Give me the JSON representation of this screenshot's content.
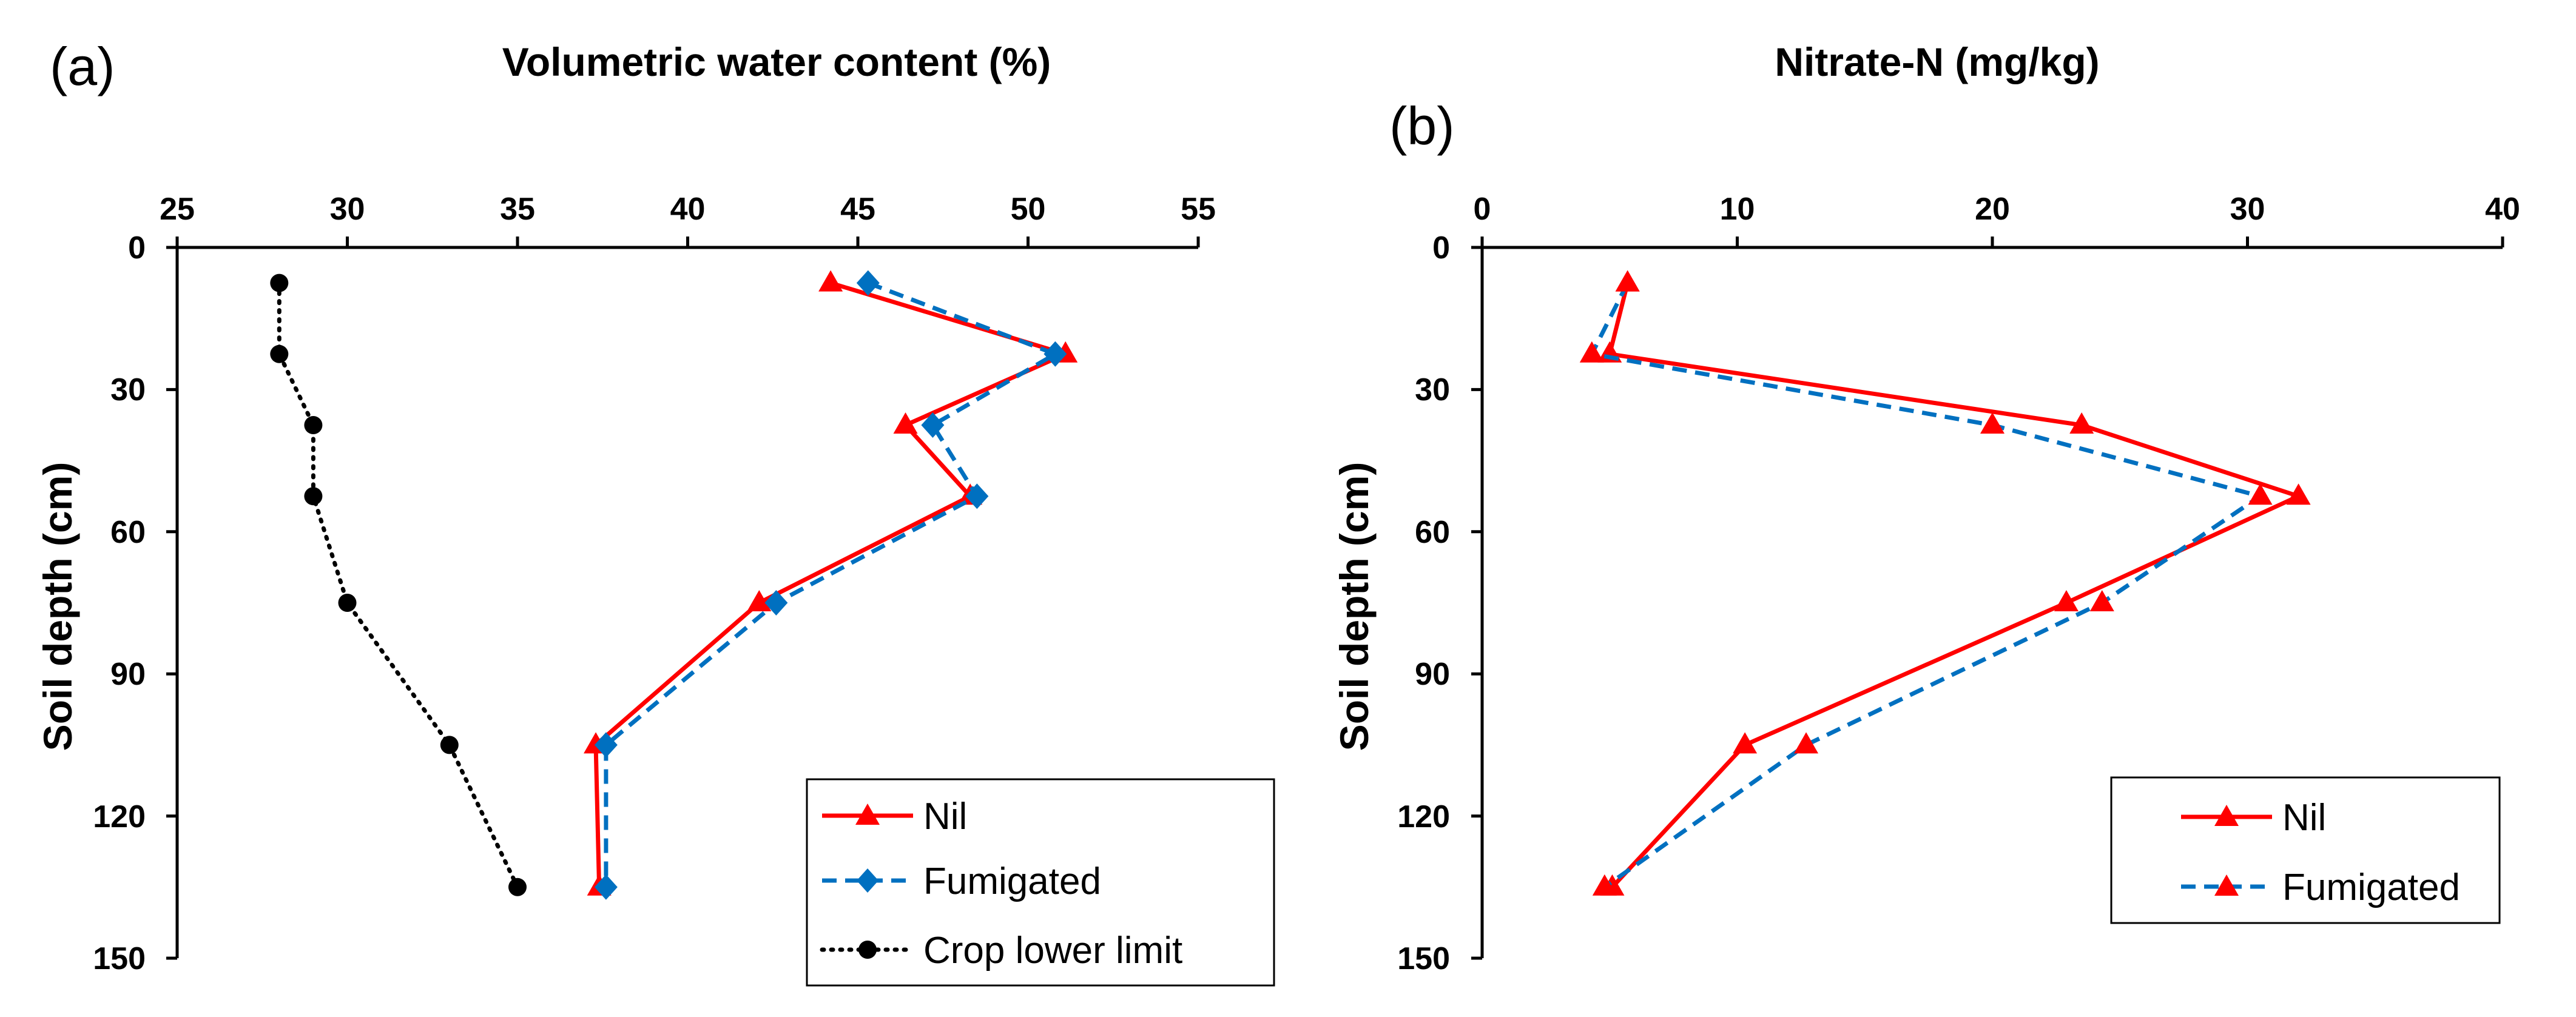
{
  "chart_data": [
    {
      "type": "line",
      "panel_label": "(a)",
      "title": "Volumetric water content (%)",
      "xlabel": "Volumetric water content (%)",
      "ylabel": "Soil depth (cm)",
      "xlim": [
        25,
        55
      ],
      "ylim": [
        0,
        150
      ],
      "y_inverted": true,
      "x_axis_position": "top",
      "xticks": [
        "25",
        "30",
        "35",
        "40",
        "45",
        "50",
        "55"
      ],
      "yticks": [
        "0",
        "30",
        "60",
        "90",
        "120",
        "150"
      ],
      "grid": false,
      "legend_position": "bottom-right",
      "depths": [
        7.5,
        22.5,
        37.5,
        52.5,
        75,
        105,
        135
      ],
      "series": [
        {
          "name": "Nil",
          "color": "#ff0000",
          "marker": "triangle",
          "dash": "solid",
          "x": [
            44.2,
            51.1,
            46.4,
            48.3,
            42.1,
            37.3,
            37.4
          ]
        },
        {
          "name": "Fumigated",
          "color": "#0070c0",
          "marker": "diamond",
          "dash": "dashed",
          "x": [
            45.3,
            50.8,
            47.2,
            48.5,
            42.6,
            37.6,
            37.6
          ]
        },
        {
          "name": "Crop lower limit",
          "color": "#000000",
          "marker": "circle",
          "dash": "dotted",
          "x": [
            28.0,
            28.0,
            29.0,
            29.0,
            30.0,
            33.0,
            35.0
          ]
        }
      ]
    },
    {
      "type": "line",
      "panel_label": "(b)",
      "title": "Nitrate-N (mg/kg)",
      "xlabel": "Nitrate-N (mg/kg)",
      "ylabel": "Soil depth (cm)",
      "xlim": [
        0,
        40
      ],
      "ylim": [
        0,
        150
      ],
      "y_inverted": true,
      "x_axis_position": "top",
      "xticks": [
        "0",
        "10",
        "20",
        "30",
        "40"
      ],
      "yticks": [
        "0",
        "30",
        "60",
        "90",
        "120",
        "150"
      ],
      "grid": false,
      "legend_position": "bottom-right",
      "depths": [
        7.5,
        22.5,
        37.5,
        52.5,
        75,
        105,
        135
      ],
      "series": [
        {
          "name": "Nil",
          "color": "#ff0000",
          "marker": "triangle",
          "dash": "solid",
          "x": [
            5.7,
            5.0,
            23.5,
            32.0,
            22.9,
            10.3,
            5.1
          ]
        },
        {
          "name": "Fumigated",
          "color": "#0070c0",
          "marker": "triangle",
          "dash": "dashed",
          "x": [
            5.7,
            4.3,
            20.0,
            30.5,
            24.3,
            12.7,
            4.8
          ]
        }
      ]
    }
  ]
}
